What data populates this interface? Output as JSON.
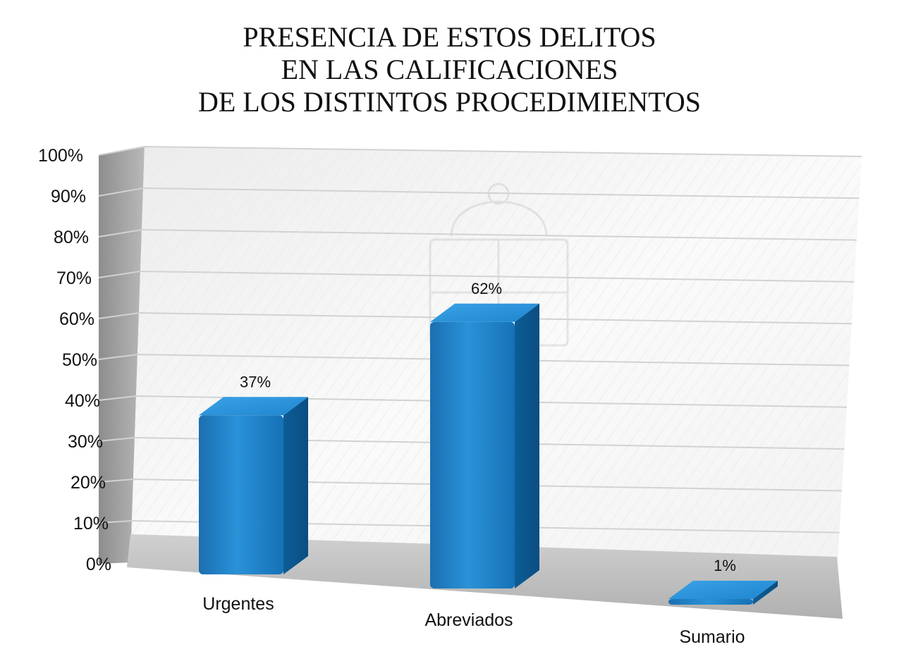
{
  "chart_data": {
    "type": "bar",
    "title_lines": [
      "PRESENCIA DE ESTOS DELITOS",
      "EN LAS CALIFICACIONES",
      "DE LOS DISTINTOS PROCEDIMIENTOS"
    ],
    "categories": [
      "Urgentes",
      "Abreviados",
      "Sumario"
    ],
    "values": [
      37,
      62,
      1
    ],
    "value_labels": [
      "37%",
      "62%",
      "1%"
    ],
    "ylim": [
      0,
      100
    ],
    "y_ticks": [
      "0%",
      "10%",
      "20%",
      "30%",
      "40%",
      "50%",
      "60%",
      "70%",
      "80%",
      "90%",
      "100%"
    ],
    "grid": true,
    "bar_color": "#1a7fc4",
    "style": "3d-column"
  }
}
